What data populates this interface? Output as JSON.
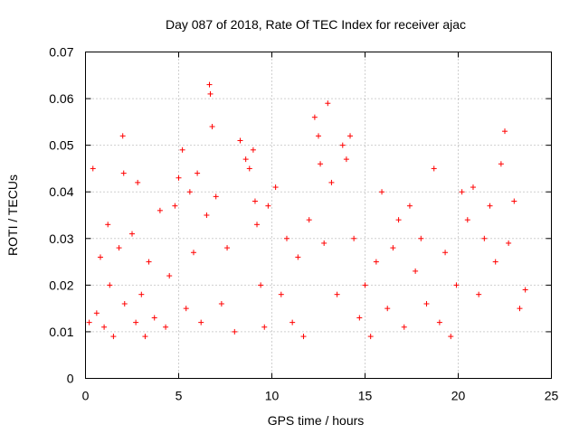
{
  "chart_data": {
    "type": "scatter",
    "title": "Day 087 of 2018, Rate Of TEC Index for receiver ajac",
    "xlabel": "GPS time / hours",
    "ylabel": "ROTI / TECUs",
    "xlim": [
      0,
      25
    ],
    "ylim": [
      0,
      0.07
    ],
    "xticks": [
      0,
      5,
      10,
      15,
      20,
      25
    ],
    "yticks": [
      0,
      0.01,
      0.02,
      0.03,
      0.04,
      0.05,
      0.06,
      0.07
    ],
    "xtick_labels": [
      "0",
      "5",
      "10",
      "15",
      "20",
      "25"
    ],
    "ytick_labels": [
      "0",
      "0.01",
      "0.02",
      "0.03",
      "0.04",
      "0.05",
      "0.06",
      "0.07"
    ],
    "grid": true,
    "marker": "+",
    "color": "#ff0000",
    "series": [
      {
        "name": "ROTI",
        "x": [
          0.2,
          0.4,
          0.6,
          0.8,
          1.0,
          1.2,
          1.3,
          1.5,
          1.8,
          2.0,
          2.05,
          2.1,
          2.5,
          2.7,
          2.8,
          3.0,
          3.2,
          3.4,
          3.7,
          4.0,
          4.3,
          4.5,
          4.8,
          5.0,
          5.2,
          5.4,
          5.6,
          5.8,
          6.0,
          6.2,
          6.5,
          6.65,
          6.7,
          6.8,
          7.0,
          7.3,
          7.6,
          8.0,
          8.3,
          8.6,
          8.8,
          9.0,
          9.1,
          9.2,
          9.4,
          9.6,
          9.8,
          10.2,
          10.5,
          10.8,
          11.1,
          11.4,
          11.7,
          12.0,
          12.3,
          12.5,
          12.6,
          12.8,
          13.0,
          13.2,
          13.5,
          13.8,
          14.0,
          14.2,
          14.4,
          14.7,
          15.0,
          15.3,
          15.6,
          15.9,
          16.2,
          16.5,
          16.8,
          17.1,
          17.4,
          17.7,
          18.0,
          18.3,
          18.7,
          19.0,
          19.3,
          19.6,
          19.9,
          20.2,
          20.5,
          20.8,
          21.1,
          21.4,
          21.7,
          22.0,
          22.3,
          22.5,
          22.7,
          23.0,
          23.3,
          23.6
        ],
        "y": [
          0.012,
          0.045,
          0.014,
          0.026,
          0.011,
          0.033,
          0.02,
          0.009,
          0.028,
          0.052,
          0.044,
          0.016,
          0.031,
          0.012,
          0.042,
          0.018,
          0.009,
          0.025,
          0.013,
          0.036,
          0.011,
          0.022,
          0.037,
          0.043,
          0.049,
          0.015,
          0.04,
          0.027,
          0.044,
          0.012,
          0.035,
          0.063,
          0.061,
          0.054,
          0.039,
          0.016,
          0.028,
          0.01,
          0.051,
          0.047,
          0.045,
          0.049,
          0.038,
          0.033,
          0.02,
          0.011,
          0.037,
          0.041,
          0.018,
          0.03,
          0.012,
          0.026,
          0.009,
          0.034,
          0.056,
          0.052,
          0.046,
          0.029,
          0.059,
          0.042,
          0.018,
          0.05,
          0.047,
          0.052,
          0.03,
          0.013,
          0.02,
          0.009,
          0.025,
          0.04,
          0.015,
          0.028,
          0.034,
          0.011,
          0.037,
          0.023,
          0.03,
          0.016,
          0.045,
          0.012,
          0.027,
          0.009,
          0.02,
          0.04,
          0.034,
          0.041,
          0.018,
          0.03,
          0.037,
          0.025,
          0.046,
          0.053,
          0.029,
          0.038,
          0.015,
          0.019
        ]
      }
    ]
  }
}
